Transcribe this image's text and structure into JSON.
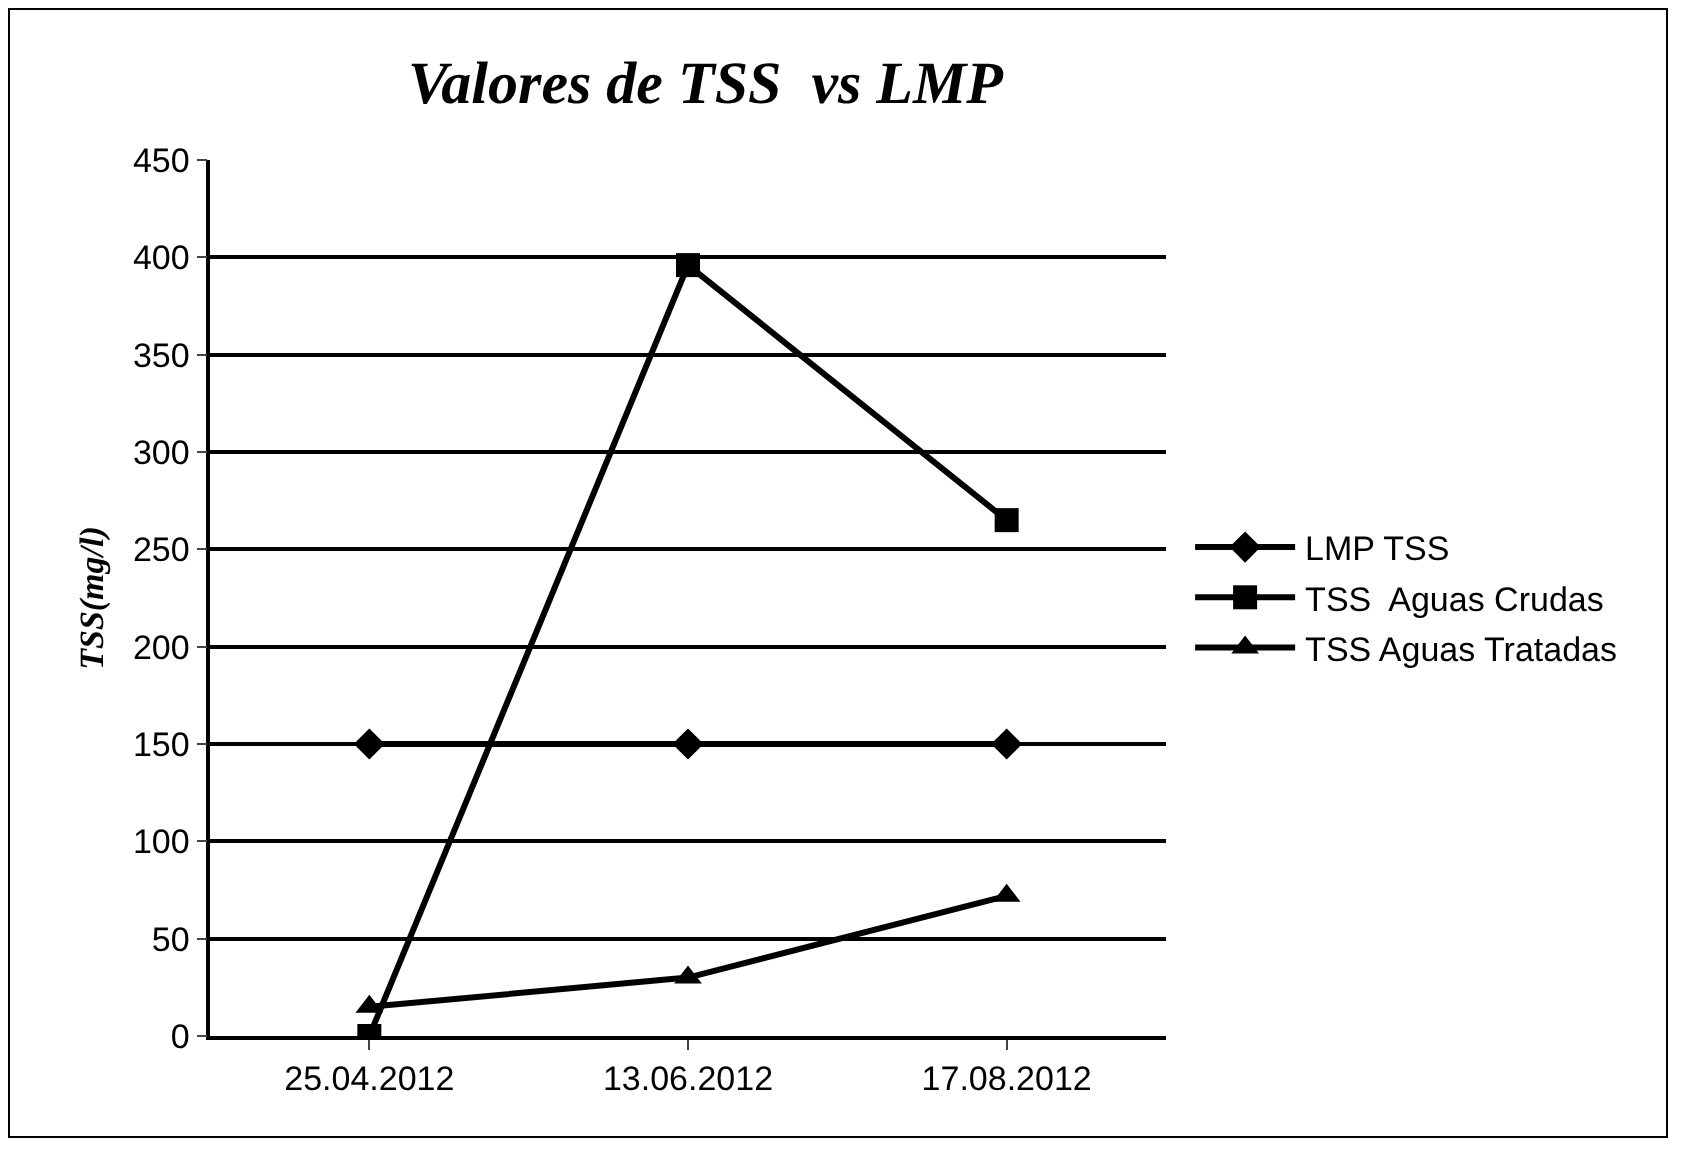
{
  "chart_data": {
    "type": "line",
    "title": "Valores de TSS  vs LMP",
    "ylabel": "TSS(mg/l)",
    "categories": [
      "25.04.2012",
      "13.06.2012",
      "17.08.2012"
    ],
    "series": [
      {
        "name": "LMP TSS",
        "color": "#000000",
        "marker": "diamond",
        "values": [
          150,
          150,
          150
        ]
      },
      {
        "name": "TSS  Aguas Crudas",
        "color": "#000000",
        "marker": "square",
        "values": [
          0,
          396,
          265
        ]
      },
      {
        "name": "TSS Aguas Tratadas",
        "color": "#000000",
        "marker": "triangle",
        "values": [
          15,
          30,
          72
        ]
      }
    ],
    "ylim": [
      0,
      450
    ],
    "yticks": [
      0,
      50,
      100,
      150,
      200,
      250,
      300,
      350,
      400,
      450
    ],
    "grid": "y",
    "legend": "right",
    "line_style": "solid"
  }
}
